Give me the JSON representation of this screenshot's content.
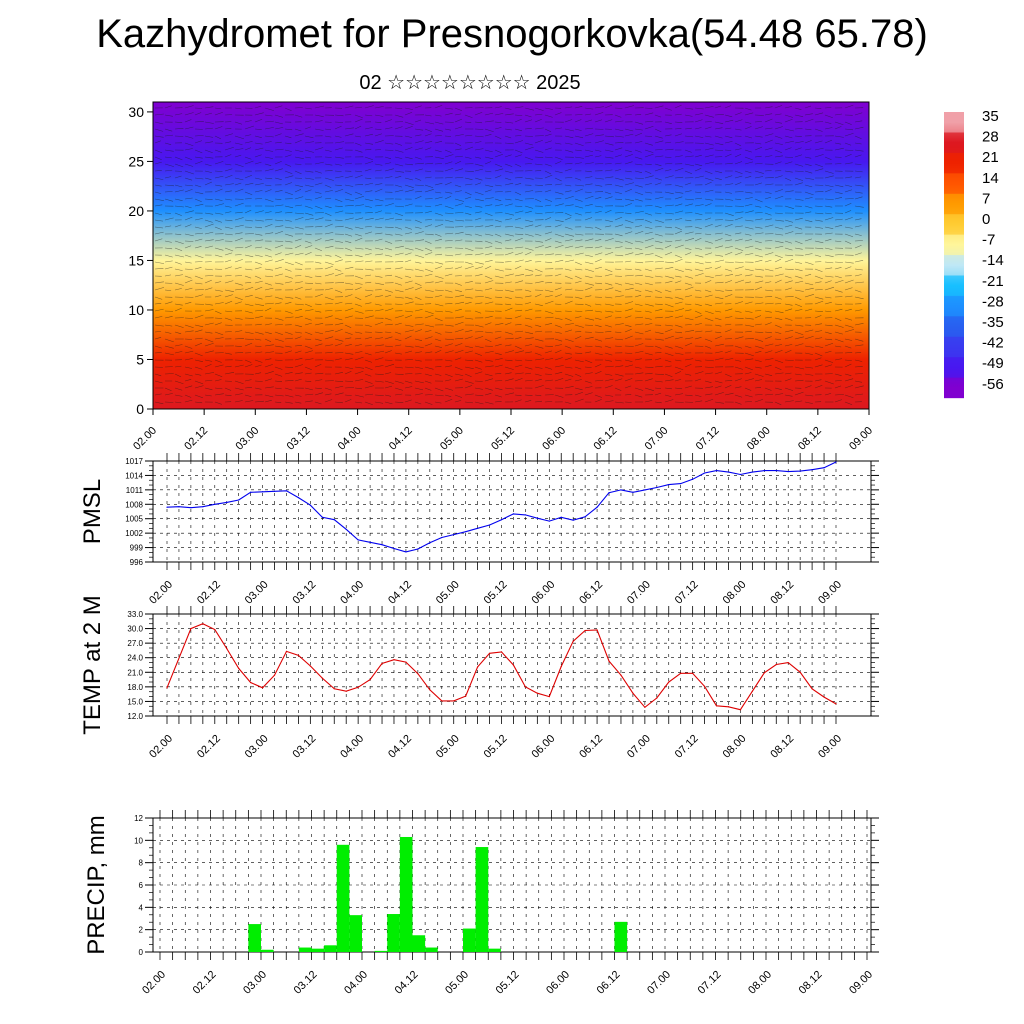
{
  "header": {
    "title": "Kazhydromet for Presnogorkovka(54.48 65.78)",
    "subtitle": "02 ☆☆☆☆☆☆☆☆ 2025"
  },
  "chart_data": [
    {
      "type": "heatmap",
      "title": "",
      "ylim": [
        0,
        31
      ],
      "yticks": [
        "0",
        "5",
        "10",
        "15",
        "20",
        "25",
        "30"
      ],
      "xticks": [
        "02.00",
        "02.12",
        "03.00",
        "03.12",
        "04.00",
        "04.12",
        "05.00",
        "05.12",
        "06.00",
        "06.12",
        "07.00",
        "07.12",
        "08.00",
        "08.12",
        "09.00"
      ],
      "colorbar": {
        "labels": [
          "35",
          "28",
          "21",
          "14",
          "7",
          "0",
          "-7",
          "-14",
          "-21",
          "-28",
          "-35",
          "-42",
          "-49",
          "-56"
        ],
        "colors": [
          "#f0a0a8",
          "#dd1820",
          "#ee2200",
          "#ff5500",
          "#ff9a00",
          "#ffcc33",
          "#fff59a",
          "#bfe8f5",
          "#18c0ff",
          "#1e90ff",
          "#2860f0",
          "#3a3af0",
          "#4818f0",
          "#8000d0"
        ]
      },
      "overlay": "wind streamlines",
      "temperature_profile": [
        {
          "level": 0,
          "value": 30
        },
        {
          "level": 5,
          "value": 24
        },
        {
          "level": 10,
          "value": 12
        },
        {
          "level": 15,
          "value": -2
        },
        {
          "level": 20,
          "value": -28
        },
        {
          "level": 25,
          "value": -48
        },
        {
          "level": 31,
          "value": -56
        }
      ]
    },
    {
      "type": "line",
      "ylabel": "PMSL",
      "ylim": [
        996,
        1017
      ],
      "yticks": [
        "996",
        "999",
        "1002",
        "1005",
        "1008",
        "1011",
        "1014",
        "1017"
      ],
      "xticks": [
        "02.00",
        "02.12",
        "03.00",
        "03.12",
        "04.00",
        "04.12",
        "05.00",
        "05.12",
        "06.00",
        "06.12",
        "07.00",
        "07.12",
        "08.00",
        "08.12",
        "09.00"
      ],
      "color": "#0000ee",
      "x_hours": [
        0,
        3,
        6,
        9,
        12,
        15,
        18,
        21,
        24,
        27,
        30,
        33,
        36,
        39,
        42,
        45,
        48,
        51,
        54,
        57,
        60,
        63,
        66,
        69,
        72,
        75,
        78,
        81,
        84,
        87,
        90,
        93,
        96,
        99,
        102,
        105,
        108,
        111,
        114,
        117,
        120,
        123,
        126,
        129,
        132,
        135,
        138,
        141,
        144,
        147,
        150,
        153,
        156,
        159,
        162,
        165,
        168
      ],
      "values": [
        1007.4,
        1007.5,
        1007.3,
        1007.5,
        1008.0,
        1008.4,
        1008.9,
        1010.5,
        1010.6,
        1010.7,
        1010.8,
        1009.4,
        1007.8,
        1005.3,
        1004.8,
        1002.8,
        1000.6,
        1000.1,
        999.6,
        998.8,
        998.1,
        998.7,
        1000.0,
        1001.1,
        1001.7,
        1002.3,
        1003.0,
        1003.7,
        1004.8,
        1006.0,
        1005.8,
        1005.1,
        1004.5,
        1005.3,
        1004.7,
        1005.4,
        1007.4,
        1010.4,
        1011.0,
        1010.5,
        1011.0,
        1011.5,
        1012.1,
        1012.3,
        1013.2,
        1014.5,
        1015.0,
        1014.7,
        1014.2,
        1014.7,
        1015.0,
        1015.0,
        1014.8,
        1014.9,
        1015.2,
        1015.6,
        1016.8
      ]
    },
    {
      "type": "line",
      "ylabel": "TEMP at 2 M",
      "ylim": [
        12,
        33
      ],
      "yticks": [
        "12.0",
        "15.0",
        "18.0",
        "21.0",
        "24.0",
        "27.0",
        "30.0",
        "33.0"
      ],
      "xticks": [
        "02.00",
        "02.12",
        "03.00",
        "03.12",
        "04.00",
        "04.12",
        "05.00",
        "05.12",
        "06.00",
        "06.12",
        "07.00",
        "07.12",
        "08.00",
        "08.12",
        "09.00"
      ],
      "color": "#dd0000",
      "x_hours": [
        0,
        6,
        9,
        12,
        15,
        18,
        21,
        24,
        27,
        30,
        33,
        36,
        39,
        42,
        45,
        48,
        51,
        54,
        57,
        60,
        63,
        66,
        69,
        72,
        75,
        78,
        81,
        84,
        87,
        90,
        93,
        96,
        99,
        102,
        105,
        108,
        111,
        114,
        117,
        120,
        123,
        126,
        129,
        132,
        135,
        138,
        141,
        144,
        147,
        150,
        153,
        156,
        159,
        162,
        165,
        168
      ],
      "values": [
        17.8,
        30.0,
        31.0,
        29.8,
        25.9,
        21.8,
        18.9,
        17.8,
        20.4,
        25.3,
        24.5,
        22.3,
        19.8,
        17.6,
        17.1,
        17.9,
        19.5,
        22.8,
        23.6,
        23.1,
        20.7,
        17.4,
        15.1,
        15.1,
        16.1,
        22.1,
        24.9,
        25.2,
        22.5,
        18.0,
        16.7,
        16.0,
        22.2,
        27.4,
        29.6,
        29.7,
        23.3,
        20.4,
        16.7,
        13.8,
        15.7,
        19.0,
        20.8,
        20.8,
        18.1,
        14.1,
        13.9,
        13.3,
        17.1,
        20.9,
        22.6,
        23.0,
        21.0,
        17.6,
        15.9,
        14.5
      ]
    },
    {
      "type": "bar",
      "ylabel": "PRECIP, mm",
      "ylim": [
        0,
        12
      ],
      "yticks": [
        "0",
        "2",
        "4",
        "6",
        "8",
        "10",
        "12"
      ],
      "xticks": [
        "02.00",
        "02.12",
        "03.00",
        "03.12",
        "04.00",
        "04.12",
        "05.00",
        "05.12",
        "06.00",
        "06.12",
        "07.00",
        "07.12",
        "08.00",
        "08.12",
        "09.00"
      ],
      "color": "#00ee00",
      "x_hours": [
        0,
        3,
        6,
        9,
        12,
        15,
        18,
        21,
        24,
        27,
        30,
        33,
        36,
        39,
        42,
        45,
        48,
        51,
        54,
        57,
        60,
        63,
        66,
        69,
        72,
        75,
        78,
        81,
        84,
        87,
        90,
        93,
        96,
        99,
        102,
        105,
        108,
        111,
        114,
        117,
        120,
        123,
        126,
        129,
        132,
        135,
        138,
        141,
        144,
        147,
        150,
        153,
        156,
        159,
        162,
        165
      ],
      "values": [
        0,
        0,
        0,
        0,
        0,
        0,
        0,
        2.5,
        0.2,
        0,
        0,
        0.4,
        0.3,
        0.6,
        9.6,
        3.3,
        0,
        0.1,
        3.4,
        10.3,
        1.5,
        0.4,
        0,
        0,
        2.1,
        9.4,
        0.3,
        0,
        0,
        0,
        0,
        0,
        0,
        0,
        0,
        0,
        2.7,
        0,
        0,
        0,
        0,
        0,
        0,
        0,
        0,
        0,
        0,
        0,
        0,
        0,
        0,
        0,
        0,
        0,
        0,
        0
      ]
    }
  ]
}
